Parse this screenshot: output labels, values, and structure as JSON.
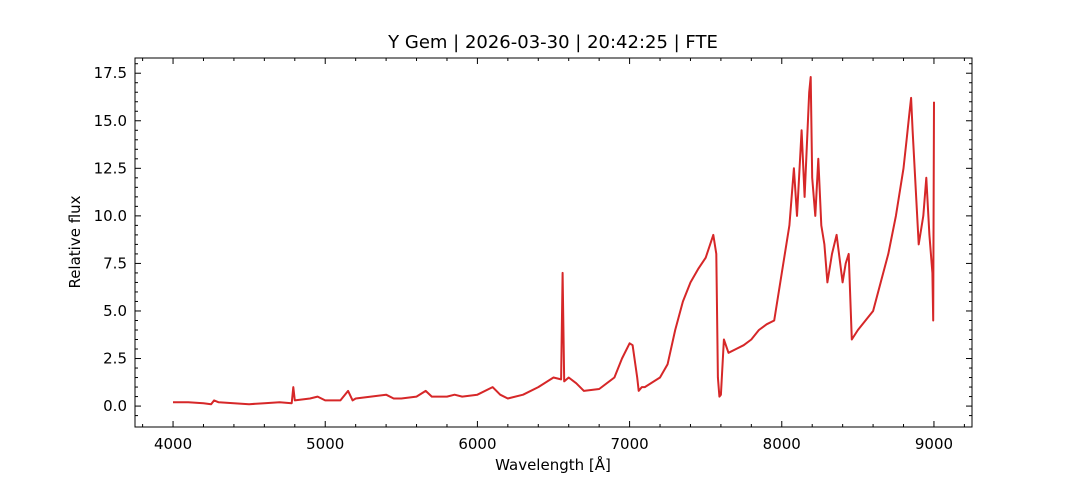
{
  "chart_data": {
    "type": "line",
    "title": "Y Gem | 2026-03-30 | 20:42:25 | FTE",
    "xlabel": "Wavelength [Å]",
    "ylabel": "Relative flux",
    "xlim": [
      3750,
      9250
    ],
    "ylim": [
      -1.1,
      18.3
    ],
    "xticks": [
      4000,
      5000,
      6000,
      7000,
      8000,
      9000
    ],
    "xtick_labels": [
      "4000",
      "5000",
      "6000",
      "7000",
      "8000",
      "9000"
    ],
    "yticks": [
      0,
      2.5,
      5,
      7.5,
      10,
      12.5,
      15,
      17.5
    ],
    "ytick_labels": [
      "0.0",
      "2.5",
      "5.0",
      "7.5",
      "10.0",
      "12.5",
      "15.0",
      "17.5"
    ],
    "grid": false,
    "series": [
      {
        "color": "#d62728",
        "x": [
          4000,
          4100,
          4200,
          4250,
          4270,
          4300,
          4400,
          4500,
          4600,
          4700,
          4780,
          4790,
          4800,
          4900,
          4950,
          5000,
          5100,
          5150,
          5180,
          5200,
          5300,
          5400,
          5450,
          5500,
          5600,
          5660,
          5700,
          5800,
          5850,
          5900,
          6000,
          6100,
          6150,
          6200,
          6300,
          6400,
          6500,
          6550,
          6560,
          6570,
          6600,
          6650,
          6700,
          6800,
          6900,
          6950,
          7000,
          7020,
          7050,
          7060,
          7080,
          7100,
          7200,
          7250,
          7300,
          7350,
          7400,
          7450,
          7500,
          7550,
          7570,
          7580,
          7590,
          7600,
          7620,
          7650,
          7700,
          7750,
          7800,
          7850,
          7900,
          7950,
          8000,
          8050,
          8080,
          8100,
          8130,
          8150,
          8180,
          8190,
          8200,
          8220,
          8240,
          8260,
          8280,
          8300,
          8330,
          8360,
          8400,
          8420,
          8440,
          8460,
          8500,
          8550,
          8600,
          8650,
          8700,
          8750,
          8800,
          8820,
          8840,
          8850,
          8860,
          8900,
          8930,
          8950,
          8970,
          8990,
          8995,
          9000
        ],
        "y": [
          0.2,
          0.2,
          0.15,
          0.1,
          0.3,
          0.2,
          0.15,
          0.1,
          0.15,
          0.2,
          0.15,
          1.0,
          0.3,
          0.4,
          0.5,
          0.3,
          0.3,
          0.8,
          0.3,
          0.4,
          0.5,
          0.6,
          0.4,
          0.4,
          0.5,
          0.8,
          0.5,
          0.5,
          0.6,
          0.5,
          0.6,
          1.0,
          0.6,
          0.4,
          0.6,
          1.0,
          1.5,
          1.4,
          7.0,
          1.3,
          1.5,
          1.2,
          0.8,
          0.9,
          1.5,
          2.5,
          3.3,
          3.2,
          1.5,
          0.8,
          1.0,
          1.0,
          1.5,
          2.2,
          4.0,
          5.5,
          6.5,
          7.2,
          7.8,
          9.0,
          8.0,
          1.5,
          0.5,
          0.6,
          3.5,
          2.8,
          3.0,
          3.2,
          3.5,
          4.0,
          4.3,
          4.5,
          7.0,
          9.5,
          12.5,
          10.0,
          14.5,
          11.0,
          16.5,
          17.3,
          12.0,
          10.0,
          13.0,
          9.5,
          8.5,
          6.5,
          8.0,
          9.0,
          6.5,
          7.5,
          8.0,
          3.5,
          4.0,
          4.5,
          5.0,
          6.5,
          8.0,
          10.0,
          12.5,
          14.0,
          15.5,
          16.2,
          14.5,
          8.5,
          10.0,
          12.0,
          9.0,
          7.0,
          4.5,
          16.0
        ]
      }
    ]
  }
}
